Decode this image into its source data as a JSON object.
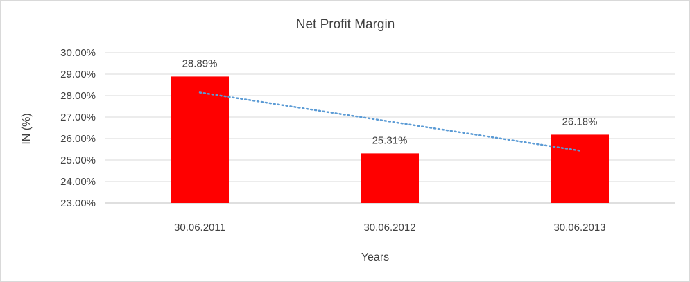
{
  "chart_data": {
    "type": "bar",
    "title": "Net Profit Margin",
    "xlabel": "Years",
    "ylabel": "IN (%)",
    "categories": [
      "30.06.2011",
      "30.06.2012",
      "30.06.2013"
    ],
    "series": [
      {
        "name": "Net Profit Margin",
        "values": [
          28.89,
          25.31,
          26.18
        ],
        "color": "#ff0000"
      }
    ],
    "data_labels": [
      "28.89%",
      "25.31%",
      "26.18%"
    ],
    "ylim": [
      23,
      30
    ],
    "yticks": [
      23,
      24,
      25,
      26,
      27,
      28,
      29,
      30
    ],
    "ytick_labels": [
      "23.00%",
      "24.00%",
      "25.00%",
      "26.00%",
      "27.00%",
      "28.00%",
      "29.00%",
      "30.00%"
    ],
    "grid": true,
    "trendline": {
      "type": "linear",
      "style": "dotted",
      "color": "#5b9bd5"
    }
  }
}
